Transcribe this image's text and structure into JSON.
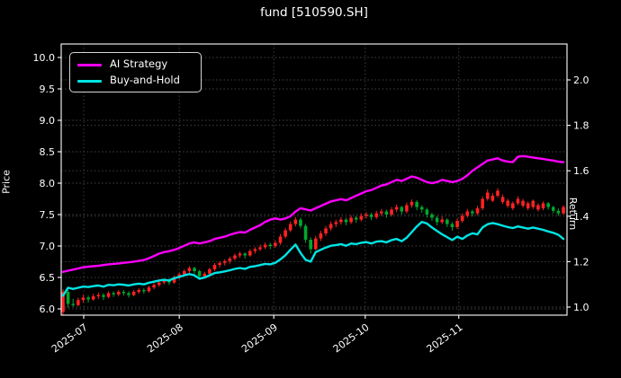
{
  "chart_data": {
    "type": "candlestick+line",
    "title": "fund [510590.SH]",
    "left_axis": {
      "label": "Price",
      "tick_labels": [
        "6.0",
        "6.5",
        "7.0",
        "7.5",
        "8.0",
        "8.5",
        "9.0",
        "9.5",
        "10.0"
      ],
      "range": [
        5.9,
        10.2
      ]
    },
    "right_axis": {
      "label": "Return",
      "tick_labels": [
        "1.0",
        "1.2",
        "1.4",
        "1.6",
        "1.8",
        "2.0"
      ],
      "range": [
        0.97,
        2.16
      ]
    },
    "x_axis": {
      "ticks": [
        {
          "label": "2025-07",
          "day": 4.1
        },
        {
          "label": "2025-08",
          "day": 23.0
        },
        {
          "label": "2025-09",
          "day": 41.7
        },
        {
          "label": "2025-10",
          "day": 59.8
        },
        {
          "label": "2025-11",
          "day": 78.3
        }
      ]
    },
    "grid": true,
    "legend_position": "upper-left",
    "series": [
      {
        "name": "AI Strategy",
        "axis": "return",
        "color": "#ff00ff",
        "values": [
          1.155,
          1.16,
          1.165,
          1.17,
          1.175,
          1.178,
          1.18,
          1.182,
          1.185,
          1.188,
          1.19,
          1.192,
          1.195,
          1.197,
          1.2,
          1.203,
          1.207,
          1.215,
          1.225,
          1.235,
          1.242,
          1.246,
          1.252,
          1.26,
          1.27,
          1.28,
          1.285,
          1.28,
          1.285,
          1.29,
          1.3,
          1.305,
          1.31,
          1.318,
          1.325,
          1.33,
          1.328,
          1.34,
          1.35,
          1.36,
          1.375,
          1.385,
          1.39,
          1.385,
          1.39,
          1.4,
          1.42,
          1.435,
          1.43,
          1.425,
          1.435,
          1.445,
          1.455,
          1.465,
          1.47,
          1.475,
          1.47,
          1.48,
          1.49,
          1.5,
          1.51,
          1.515,
          1.525,
          1.535,
          1.54,
          1.55,
          1.56,
          1.555,
          1.565,
          1.575,
          1.57,
          1.56,
          1.55,
          1.545,
          1.55,
          1.56,
          1.555,
          1.55,
          1.555,
          1.565,
          1.58,
          1.6,
          1.615,
          1.63,
          1.645,
          1.65,
          1.655,
          1.645,
          1.64,
          1.638,
          1.662,
          1.665,
          1.662,
          1.658,
          1.655,
          1.652,
          1.648,
          1.645,
          1.64,
          1.638
        ]
      },
      {
        "name": "Buy-and-Hold",
        "axis": "return",
        "color": "#00e5e5",
        "values": [
          1.05,
          1.085,
          1.08,
          1.085,
          1.09,
          1.088,
          1.092,
          1.095,
          1.09,
          1.098,
          1.096,
          1.1,
          1.098,
          1.095,
          1.1,
          1.103,
          1.1,
          1.107,
          1.112,
          1.117,
          1.12,
          1.117,
          1.127,
          1.133,
          1.14,
          1.145,
          1.14,
          1.125,
          1.13,
          1.14,
          1.15,
          1.153,
          1.157,
          1.162,
          1.168,
          1.172,
          1.168,
          1.177,
          1.18,
          1.185,
          1.19,
          1.188,
          1.195,
          1.21,
          1.228,
          1.252,
          1.275,
          1.238,
          1.208,
          1.2,
          1.242,
          1.252,
          1.262,
          1.27,
          1.273,
          1.277,
          1.27,
          1.28,
          1.277,
          1.283,
          1.286,
          1.28,
          1.288,
          1.29,
          1.285,
          1.295,
          1.3,
          1.29,
          1.305,
          1.33,
          1.355,
          1.375,
          1.368,
          1.35,
          1.335,
          1.32,
          1.308,
          1.295,
          1.31,
          1.3,
          1.315,
          1.325,
          1.32,
          1.35,
          1.365,
          1.37,
          1.365,
          1.358,
          1.352,
          1.348,
          1.355,
          1.35,
          1.345,
          1.35,
          1.345,
          1.34,
          1.333,
          1.327,
          1.318,
          1.3
        ]
      }
    ],
    "candles": {
      "axis": "price",
      "up_color": "#ff2222",
      "down_color": "#00a82e",
      "ohlc": [
        [
          5.95,
          6.31,
          5.9,
          6.27
        ],
        [
          6.27,
          6.3,
          6.02,
          6.08
        ],
        [
          6.08,
          6.16,
          6.03,
          6.06
        ],
        [
          6.06,
          6.18,
          6.04,
          6.14
        ],
        [
          6.14,
          6.22,
          6.1,
          6.18
        ],
        [
          6.18,
          6.21,
          6.1,
          6.15
        ],
        [
          6.15,
          6.24,
          6.13,
          6.2
        ],
        [
          6.2,
          6.26,
          6.16,
          6.22
        ],
        [
          6.22,
          6.25,
          6.14,
          6.19
        ],
        [
          6.19,
          6.28,
          6.17,
          6.25
        ],
        [
          6.25,
          6.28,
          6.19,
          6.23
        ],
        [
          6.23,
          6.3,
          6.2,
          6.27
        ],
        [
          6.27,
          6.3,
          6.21,
          6.25
        ],
        [
          6.25,
          6.28,
          6.18,
          6.22
        ],
        [
          6.22,
          6.3,
          6.2,
          6.27
        ],
        [
          6.27,
          6.33,
          6.24,
          6.3
        ],
        [
          6.3,
          6.33,
          6.24,
          6.28
        ],
        [
          6.28,
          6.37,
          6.26,
          6.34
        ],
        [
          6.34,
          6.41,
          6.31,
          6.38
        ],
        [
          6.38,
          6.45,
          6.35,
          6.42
        ],
        [
          6.42,
          6.48,
          6.39,
          6.45
        ],
        [
          6.45,
          6.48,
          6.38,
          6.42
        ],
        [
          6.42,
          6.53,
          6.4,
          6.5
        ],
        [
          6.5,
          6.58,
          6.47,
          6.55
        ],
        [
          6.55,
          6.63,
          6.52,
          6.6
        ],
        [
          6.6,
          6.68,
          6.57,
          6.65
        ],
        [
          6.65,
          6.67,
          6.56,
          6.6
        ],
        [
          6.6,
          6.62,
          6.48,
          6.52
        ],
        [
          6.52,
          6.59,
          6.49,
          6.56
        ],
        [
          6.56,
          6.66,
          6.53,
          6.63
        ],
        [
          6.63,
          6.73,
          6.6,
          6.7
        ],
        [
          6.7,
          6.76,
          6.66,
          6.73
        ],
        [
          6.73,
          6.79,
          6.69,
          6.76
        ],
        [
          6.76,
          6.83,
          6.72,
          6.8
        ],
        [
          6.8,
          6.88,
          6.77,
          6.85
        ],
        [
          6.85,
          6.91,
          6.81,
          6.88
        ],
        [
          6.88,
          6.9,
          6.8,
          6.85
        ],
        [
          6.85,
          6.95,
          6.83,
          6.92
        ],
        [
          6.92,
          6.98,
          6.88,
          6.95
        ],
        [
          6.95,
          7.02,
          6.92,
          6.98
        ],
        [
          6.98,
          7.06,
          6.95,
          7.02
        ],
        [
          7.02,
          7.05,
          6.95,
          7.0
        ],
        [
          7.0,
          7.09,
          6.97,
          7.05
        ],
        [
          7.05,
          7.19,
          7.02,
          7.15
        ],
        [
          7.15,
          7.29,
          7.12,
          7.25
        ],
        [
          7.25,
          7.39,
          7.22,
          7.35
        ],
        [
          7.35,
          7.46,
          7.31,
          7.42
        ],
        [
          7.42,
          7.45,
          7.28,
          7.32
        ],
        [
          7.32,
          7.35,
          7.05,
          7.1
        ],
        [
          7.1,
          7.14,
          6.88,
          6.95
        ],
        [
          6.95,
          7.16,
          6.93,
          7.12
        ],
        [
          7.12,
          7.24,
          7.08,
          7.2
        ],
        [
          7.2,
          7.32,
          7.16,
          7.28
        ],
        [
          7.28,
          7.39,
          7.24,
          7.35
        ],
        [
          7.35,
          7.42,
          7.3,
          7.38
        ],
        [
          7.38,
          7.46,
          7.34,
          7.42
        ],
        [
          7.42,
          7.45,
          7.33,
          7.38
        ],
        [
          7.38,
          7.49,
          7.35,
          7.45
        ],
        [
          7.45,
          7.48,
          7.37,
          7.42
        ],
        [
          7.42,
          7.52,
          7.39,
          7.48
        ],
        [
          7.48,
          7.54,
          7.44,
          7.5
        ],
        [
          7.5,
          7.53,
          7.41,
          7.46
        ],
        [
          7.46,
          7.56,
          7.43,
          7.52
        ],
        [
          7.52,
          7.59,
          7.48,
          7.55
        ],
        [
          7.55,
          7.58,
          7.45,
          7.5
        ],
        [
          7.5,
          7.62,
          7.47,
          7.58
        ],
        [
          7.58,
          7.66,
          7.54,
          7.62
        ],
        [
          7.62,
          7.64,
          7.5,
          7.55
        ],
        [
          7.55,
          7.69,
          7.52,
          7.65
        ],
        [
          7.65,
          7.74,
          7.61,
          7.7
        ],
        [
          7.7,
          7.73,
          7.57,
          7.62
        ],
        [
          7.62,
          7.65,
          7.53,
          7.58
        ],
        [
          7.58,
          7.61,
          7.45,
          7.5
        ],
        [
          7.5,
          7.53,
          7.4,
          7.45
        ],
        [
          7.45,
          7.48,
          7.33,
          7.38
        ],
        [
          7.38,
          7.47,
          7.35,
          7.42
        ],
        [
          7.42,
          7.44,
          7.3,
          7.35
        ],
        [
          7.35,
          7.38,
          7.24,
          7.3
        ],
        [
          7.3,
          7.44,
          7.27,
          7.4
        ],
        [
          7.4,
          7.52,
          7.37,
          7.48
        ],
        [
          7.48,
          7.59,
          7.45,
          7.55
        ],
        [
          7.55,
          7.58,
          7.47,
          7.52
        ],
        [
          7.52,
          7.64,
          7.49,
          7.6
        ],
        [
          7.6,
          7.79,
          7.57,
          7.75
        ],
        [
          7.75,
          7.9,
          7.72,
          7.85
        ],
        [
          7.72,
          7.84,
          7.7,
          7.8
        ],
        [
          7.8,
          7.92,
          7.77,
          7.88
        ],
        [
          7.7,
          7.82,
          7.67,
          7.78
        ],
        [
          7.64,
          7.75,
          7.61,
          7.72
        ],
        [
          7.6,
          7.71,
          7.57,
          7.68
        ],
        [
          7.68,
          7.79,
          7.65,
          7.75
        ],
        [
          7.64,
          7.75,
          7.61,
          7.72
        ],
        [
          7.6,
          7.71,
          7.57,
          7.68
        ],
        [
          7.62,
          7.74,
          7.59,
          7.72
        ],
        [
          7.58,
          7.68,
          7.55,
          7.65
        ],
        [
          7.6,
          7.71,
          7.57,
          7.68
        ],
        [
          7.68,
          7.7,
          7.58,
          7.62
        ],
        [
          7.62,
          7.64,
          7.52,
          7.56
        ],
        [
          7.56,
          7.6,
          7.48,
          7.52
        ],
        [
          7.52,
          7.65,
          7.5,
          7.62
        ]
      ]
    },
    "colors": {
      "background": "#000000",
      "text": "#ffffff",
      "grid": "#454545",
      "frame": "#ffffff"
    }
  }
}
